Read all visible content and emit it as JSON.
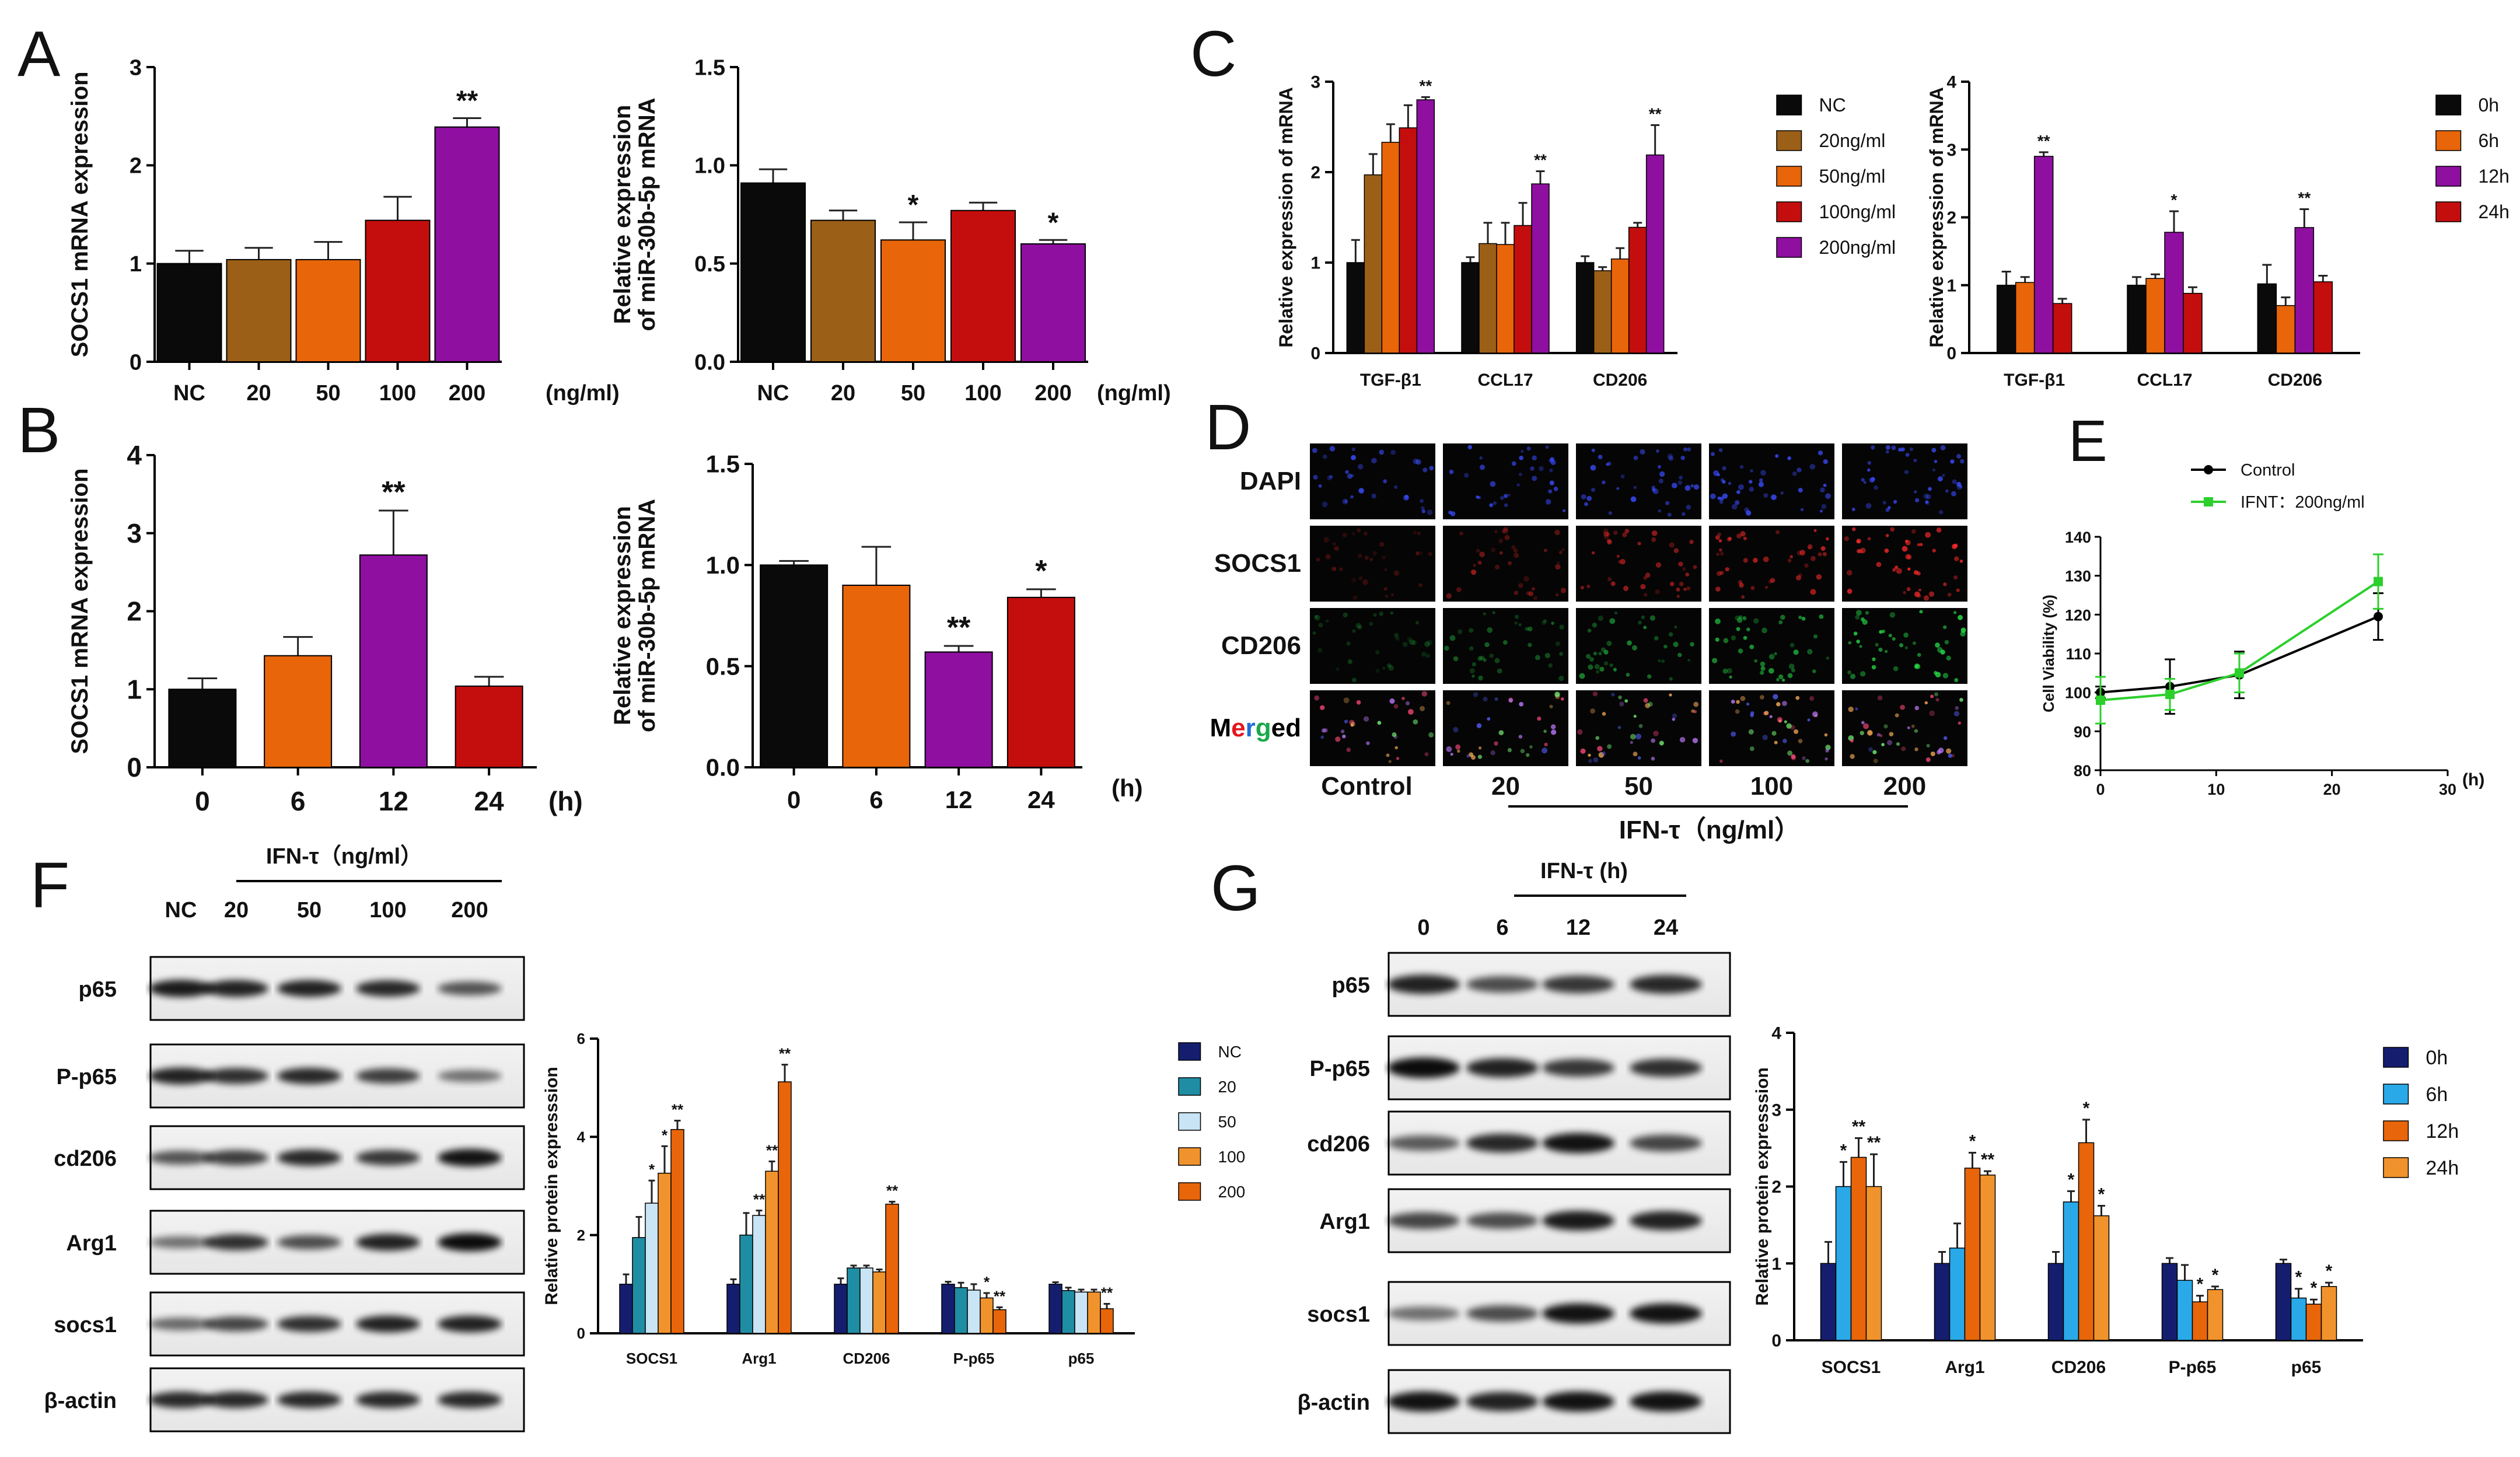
{
  "colors": {
    "black": "#0a0a0a",
    "brown": "#9c5f17",
    "orange": "#e8650a",
    "red": "#c40e0e",
    "purple": "#8e0fa0",
    "light_orange": "#f0932c",
    "dapi": "#1d6dd6",
    "socs1": "#e3161c",
    "cd206": "#1aa84a",
    "navy": "#151e6e",
    "teal": "#1f8ea5",
    "pale_blue": "#c9e4f4",
    "sky": "#2aa9e9",
    "control_line": "#000000",
    "ifnt_line": "#2ccf2c"
  },
  "panel_labels": {
    "a": "A",
    "b": "B",
    "c": "C",
    "d": "D",
    "e": "E",
    "f": "F",
    "g": "G"
  },
  "significance": {
    "single": "*",
    "double": "**"
  },
  "chart_data": [
    {
      "id": "A1",
      "type": "bar",
      "ylabel": "SOCS1 mRNA expression",
      "xunit": "(ng/ml)",
      "categories": [
        "NC",
        "20",
        "50",
        "100",
        "200"
      ],
      "values": [
        1.0,
        1.04,
        1.04,
        1.44,
        2.39
      ],
      "errors": [
        0.13,
        0.12,
        0.18,
        0.24,
        0.09
      ],
      "sig": [
        "",
        "",
        "",
        "",
        "**"
      ],
      "ylim": [
        0,
        3
      ],
      "yticks": [
        0,
        1,
        2,
        3
      ],
      "colors": [
        "black",
        "brown",
        "orange",
        "red",
        "purple"
      ]
    },
    {
      "id": "A2",
      "type": "bar",
      "ylabel": [
        "Relative expression",
        "of miR-30b-5p mRNA"
      ],
      "xunit": "(ng/ml)",
      "categories": [
        "NC",
        "20",
        "50",
        "100",
        "200"
      ],
      "values": [
        0.91,
        0.72,
        0.62,
        0.77,
        0.6
      ],
      "errors": [
        0.07,
        0.05,
        0.09,
        0.04,
        0.02
      ],
      "sig": [
        "",
        "",
        "*",
        "",
        "*"
      ],
      "ylim": [
        0,
        1.5
      ],
      "yticks": [
        "0.0",
        "0.5",
        "1.0",
        "1.5"
      ],
      "colors": [
        "black",
        "brown",
        "orange",
        "red",
        "purple"
      ]
    },
    {
      "id": "B1",
      "type": "bar",
      "ylabel": "SOCS1 mRNA expression",
      "xunit": "(h)",
      "categories": [
        "0",
        "6",
        "12",
        "24"
      ],
      "values": [
        1.0,
        1.43,
        2.72,
        1.04
      ],
      "errors": [
        0.14,
        0.24,
        0.57,
        0.12
      ],
      "sig": [
        "",
        "",
        "**",
        ""
      ],
      "ylim": [
        0,
        4
      ],
      "yticks": [
        0,
        1,
        2,
        3,
        4
      ],
      "colors": [
        "black",
        "orange",
        "purple",
        "red"
      ]
    },
    {
      "id": "B2",
      "type": "bar",
      "ylabel": [
        "Relative expression",
        "of miR-30b-5p mRNA"
      ],
      "xunit": "(h)",
      "categories": [
        "0",
        "6",
        "12",
        "24"
      ],
      "values": [
        1.0,
        0.9,
        0.57,
        0.84
      ],
      "errors": [
        0.02,
        0.19,
        0.03,
        0.04
      ],
      "sig": [
        "",
        "",
        "**",
        "*"
      ],
      "ylim": [
        0,
        1.5
      ],
      "yticks": [
        "0.0",
        "0.5",
        "1.0",
        "1.5"
      ],
      "colors": [
        "black",
        "orange",
        "purple",
        "red"
      ]
    },
    {
      "id": "C1",
      "type": "bar",
      "ylabel": "Relative expression of mRNA",
      "categories": [
        "TGF-β1",
        "CCL17",
        "CD206"
      ],
      "series": [
        {
          "name": "NC",
          "color": "black",
          "values": [
            1.0,
            1.0,
            1.0
          ],
          "errors": [
            0.25,
            0.06,
            0.07
          ],
          "sig": [
            "",
            "",
            ""
          ]
        },
        {
          "name": "20ng/ml",
          "color": "brown",
          "values": [
            1.97,
            1.21,
            0.91
          ],
          "errors": [
            0.23,
            0.23,
            0.04
          ],
          "sig": [
            "",
            "",
            ""
          ]
        },
        {
          "name": "50ng/ml",
          "color": "orange",
          "values": [
            2.33,
            1.2,
            1.04
          ],
          "errors": [
            0.2,
            0.24,
            0.12
          ],
          "sig": [
            "",
            "",
            ""
          ]
        },
        {
          "name": "100ng/ml",
          "color": "red",
          "values": [
            2.49,
            1.41,
            1.39
          ],
          "errors": [
            0.25,
            0.25,
            0.05
          ],
          "sig": [
            "",
            "",
            ""
          ]
        },
        {
          "name": "200ng/ml",
          "color": "purple",
          "values": [
            2.8,
            1.87,
            2.19
          ],
          "errors": [
            0.03,
            0.14,
            0.33
          ],
          "sig": [
            "**",
            "**",
            "**"
          ]
        }
      ],
      "ylim": [
        0,
        3
      ],
      "yticks": [
        0,
        1,
        2,
        3
      ]
    },
    {
      "id": "C2",
      "type": "bar",
      "ylabel": "Relative expression of mRNA",
      "categories": [
        "TGF-β1",
        "CCL17",
        "CD206"
      ],
      "series": [
        {
          "name": "0h",
          "color": "black",
          "values": [
            1.0,
            1.0,
            1.02
          ],
          "errors": [
            0.2,
            0.12,
            0.28
          ],
          "sig": [
            "",
            "",
            ""
          ]
        },
        {
          "name": "6h",
          "color": "orange",
          "values": [
            1.04,
            1.1,
            0.7
          ],
          "errors": [
            0.08,
            0.06,
            0.12
          ],
          "sig": [
            "",
            "",
            ""
          ]
        },
        {
          "name": "12h",
          "color": "purple",
          "values": [
            2.9,
            1.78,
            1.85
          ],
          "errors": [
            0.06,
            0.31,
            0.27
          ],
          "sig": [
            "**",
            "*",
            "**"
          ]
        },
        {
          "name": "24h",
          "color": "red",
          "values": [
            0.73,
            0.88,
            1.05
          ],
          "errors": [
            0.07,
            0.09,
            0.09
          ],
          "sig": [
            "",
            "",
            ""
          ]
        }
      ],
      "ylim": [
        0,
        4
      ],
      "yticks": [
        0,
        1,
        2,
        3,
        4
      ]
    },
    {
      "id": "E",
      "type": "line",
      "ylabel": "Cell Viability (%)",
      "xunit": "(h)",
      "xlim": [
        0,
        30
      ],
      "xticks": [
        0,
        10,
        20,
        30
      ],
      "ylim": [
        80,
        140
      ],
      "yticks": [
        80,
        90,
        100,
        110,
        120,
        130,
        140
      ],
      "series": [
        {
          "name": "Control",
          "color": "control_line",
          "x": [
            0,
            6,
            12,
            24
          ],
          "y": [
            100,
            101.5,
            104.5,
            119.5
          ],
          "errors": [
            1.5,
            7,
            6,
            6
          ]
        },
        {
          "name": "IFNT：200ng/ml",
          "color": "ifnt_line",
          "x": [
            0,
            6,
            12,
            24
          ],
          "y": [
            98,
            99.5,
            105,
            128.5
          ],
          "errors": [
            6,
            4,
            5,
            7
          ]
        }
      ]
    },
    {
      "id": "F",
      "type": "bar",
      "ylabel": "Relative protein expresssion",
      "categories": [
        "SOCS1",
        "Arg1",
        "CD206",
        "P-p65",
        "p65"
      ],
      "series": [
        {
          "name": "NC",
          "color": "navy",
          "values": [
            1.0,
            1.0,
            1.0,
            1.0,
            1.0
          ],
          "errors": [
            0.2,
            0.1,
            0.12,
            0.05,
            0.04
          ],
          "sig": [
            "",
            "",
            "",
            "",
            ""
          ]
        },
        {
          "name": "20",
          "color": "teal",
          "values": [
            1.95,
            2.0,
            1.33,
            0.93,
            0.87
          ],
          "errors": [
            0.42,
            0.45,
            0.05,
            0.1,
            0.06
          ],
          "sig": [
            "",
            "",
            "",
            "",
            ""
          ]
        },
        {
          "name": "50",
          "color": "pale_blue",
          "values": [
            2.65,
            2.4,
            1.33,
            0.88,
            0.84
          ],
          "errors": [
            0.46,
            0.1,
            0.05,
            0.12,
            0.05
          ],
          "sig": [
            "*",
            "**",
            "",
            "",
            ""
          ]
        },
        {
          "name": "100",
          "color": "light_orange",
          "values": [
            3.26,
            3.3,
            1.25,
            0.72,
            0.84
          ],
          "errors": [
            0.55,
            0.2,
            0.05,
            0.1,
            0.05
          ],
          "sig": [
            "*",
            "**",
            "",
            "*",
            ""
          ]
        },
        {
          "name": "200",
          "color": "orange",
          "values": [
            4.15,
            5.12,
            2.63,
            0.48,
            0.5
          ],
          "errors": [
            0.18,
            0.35,
            0.05,
            0.05,
            0.1
          ],
          "sig": [
            "**",
            "**",
            "**",
            "**",
            "**"
          ]
        }
      ],
      "ylim": [
        0,
        6
      ],
      "yticks": [
        0,
        2,
        4,
        6
      ]
    },
    {
      "id": "G",
      "type": "bar",
      "ylabel": "Relative protein expresssion",
      "categories": [
        "SOCS1",
        "Arg1",
        "CD206",
        "P-p65",
        "p65"
      ],
      "series": [
        {
          "name": "0h",
          "color": "navy",
          "values": [
            1.0,
            1.0,
            1.0,
            1.0,
            1.0
          ],
          "errors": [
            0.28,
            0.15,
            0.15,
            0.07,
            0.05
          ],
          "sig": [
            "",
            "",
            "",
            "",
            ""
          ]
        },
        {
          "name": "6h",
          "color": "sky",
          "values": [
            2.0,
            1.2,
            1.8,
            0.78,
            0.55
          ],
          "errors": [
            0.32,
            0.32,
            0.14,
            0.2,
            0.12
          ],
          "sig": [
            "*",
            "",
            "*",
            "",
            "*"
          ]
        },
        {
          "name": "12h",
          "color": "orange",
          "values": [
            2.38,
            2.24,
            2.57,
            0.5,
            0.47
          ],
          "errors": [
            0.25,
            0.2,
            0.3,
            0.08,
            0.06
          ],
          "sig": [
            "**",
            "*",
            "*",
            "*",
            "*"
          ]
        },
        {
          "name": "24h",
          "color": "light_orange",
          "values": [
            2.0,
            2.15,
            1.62,
            0.66,
            0.7
          ],
          "errors": [
            0.42,
            0.05,
            0.13,
            0.04,
            0.05
          ],
          "sig": [
            "**",
            "**",
            "*",
            "*",
            "*"
          ]
        }
      ],
      "ylim": [
        0,
        4
      ],
      "yticks": [
        0,
        1,
        2,
        3,
        4
      ]
    }
  ],
  "panel_D": {
    "rows": [
      {
        "label": "DAPI",
        "color": "dapi"
      },
      {
        "label": "SOCS1",
        "color": "socs1"
      },
      {
        "label": "CD206",
        "color": "cd206"
      },
      {
        "label_parts": [
          "M",
          "e",
          "r",
          "g",
          "ed"
        ],
        "label_colors": [
          "#000000",
          "#e3161c",
          "#1d6dd6",
          "#1aa84a",
          "#000000"
        ]
      }
    ],
    "columns": [
      "Control",
      "20",
      "50",
      "100",
      "200"
    ],
    "caption": "IFN-τ（ng/ml）"
  },
  "panel_F_blot": {
    "header": "IFN-τ（ng/ml）",
    "lanes": [
      "NC",
      "20",
      "50",
      "100",
      "200"
    ],
    "rows": [
      "p65",
      "P-p65",
      "cd206",
      "Arg1",
      "socs1",
      "β-actin"
    ]
  },
  "panel_G_blot": {
    "header": "IFN-τ (h)",
    "lanes": [
      "0",
      "6",
      "12",
      "24"
    ],
    "rows": [
      "p65",
      "P-p65",
      "cd206",
      "Arg1",
      "socs1",
      "β-actin"
    ]
  }
}
